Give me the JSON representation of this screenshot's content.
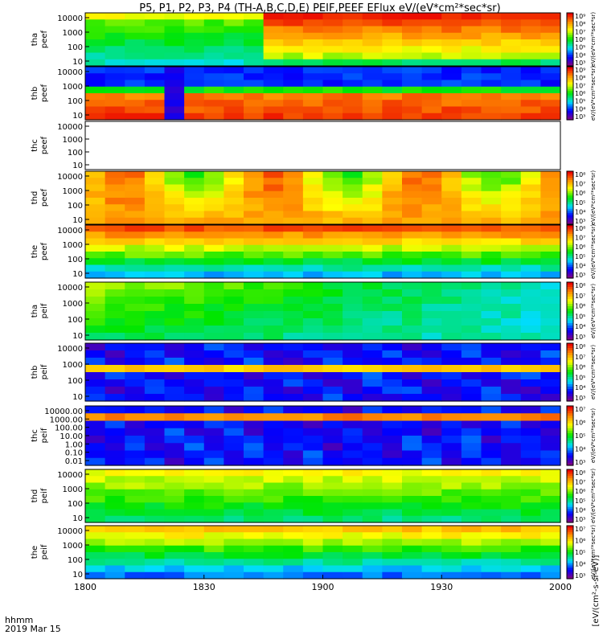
{
  "chart_data": {
    "type": "heatmap",
    "title": "P5, P1, P2, P3, P4 (TH-A,B,C,D,E) PEIF,PEEF EFlux eV/(eV*cm²*sec*sr)",
    "time_axis": {
      "label_line1": "hhmm",
      "label_line2": "2019 Mar 15",
      "ticks": [
        "1800",
        "1830",
        "1900",
        "1930",
        "2000"
      ],
      "range_hours": [
        18.0,
        20.0
      ]
    },
    "colorbar_label": "[eV/(cm²-s-sr-eV)]",
    "panels": [
      {
        "probe": "tha",
        "species": "peef",
        "yticks": [
          "10000",
          "1000",
          "100",
          "10"
        ],
        "cbar_ticks": [
          "10⁹",
          "10⁸",
          "10⁷",
          "10⁶",
          "10⁵",
          "10⁴",
          "10³"
        ],
        "cbar_label": "eV/(eV*cm²*sec*sr)"
      },
      {
        "probe": "thb",
        "species": "peef",
        "yticks": [
          "10000",
          "1000",
          "100",
          "10"
        ],
        "cbar_ticks": [
          "10⁹",
          "10⁸",
          "10⁷",
          "10⁶",
          "10⁵",
          "10⁴",
          "10³"
        ],
        "cbar_label": "eV/(eV*cm²*sec*sr)"
      },
      {
        "probe": "thc",
        "species": "peef",
        "yticks": [
          "10000",
          "1000",
          "100",
          "10"
        ],
        "cbar_ticks": [],
        "cbar_label": ""
      },
      {
        "probe": "thd",
        "species": "peef",
        "yticks": [
          "10000",
          "1000",
          "100",
          "10"
        ],
        "cbar_ticks": [
          "10⁸",
          "10⁷",
          "10⁶",
          "10⁵",
          "10⁴",
          "10³"
        ],
        "cbar_label": "eV/(eV*cm²*sec*sr)"
      },
      {
        "probe": "the",
        "species": "peef",
        "yticks": [
          "10000",
          "1000",
          "100",
          "10"
        ],
        "cbar_ticks": [
          "10⁸",
          "10⁷",
          "10⁶",
          "10⁵",
          "10⁴",
          "10³"
        ],
        "cbar_label": "eV/(eV*cm²*sec*sr)"
      },
      {
        "probe": "tha",
        "species": "peif",
        "yticks": [
          "10000",
          "1000",
          "100",
          "10"
        ],
        "cbar_ticks": [
          "10⁸",
          "10⁷",
          "10⁶",
          "10⁵",
          "10⁴",
          "10³"
        ],
        "cbar_label": "eV/(eV*cm²*sec*sr)"
      },
      {
        "probe": "thb",
        "species": "peif",
        "yticks": [
          "10000",
          "1000",
          "100",
          "10"
        ],
        "cbar_ticks": [
          "10⁸",
          "10⁷",
          "10⁶",
          "10⁵",
          "10⁴",
          "10³"
        ],
        "cbar_label": "eV/(eV*cm²*sec*sr)"
      },
      {
        "probe": "thc",
        "species": "peif",
        "yticks": [
          "10000.00",
          "1000.00",
          "100.00",
          "10.00",
          "1.00",
          "0.10",
          "0.01"
        ],
        "cbar_ticks": [
          "10⁷",
          "10⁶",
          "10⁵",
          "10⁴",
          "10³"
        ],
        "cbar_label": "eV/(eV*cm²*sec*sr)"
      },
      {
        "probe": "thd",
        "species": "peif",
        "yticks": [
          "10000",
          "1000",
          "100",
          "10"
        ],
        "cbar_ticks": [
          "10⁸",
          "10⁷",
          "10⁶",
          "10⁵",
          "10⁴",
          "10³"
        ],
        "cbar_label": "eV/(eV*cm²*sec*sr)"
      },
      {
        "probe": "the",
        "species": "peif",
        "yticks": [
          "10000",
          "1000",
          "100",
          "10"
        ],
        "cbar_ticks": [
          "10⁷",
          "10⁶",
          "10⁵",
          "10⁴",
          "10³"
        ],
        "cbar_label": "eV/(eV*cm²*sec*sr)"
      }
    ]
  }
}
